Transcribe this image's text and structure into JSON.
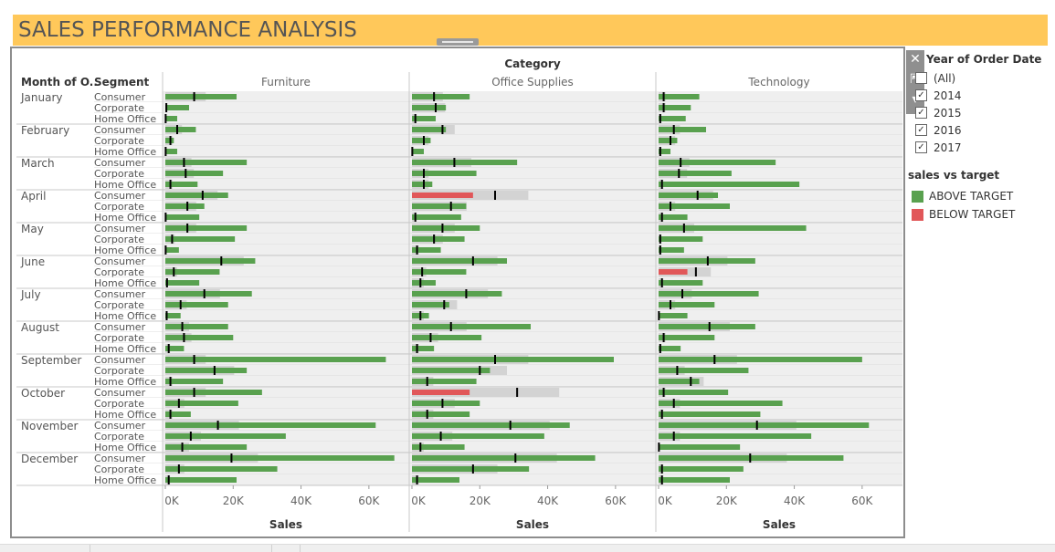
{
  "title": "SALES PERFORMANCE ANALYSIS",
  "filter": {
    "title": "Year of Order Date",
    "options": [
      {
        "label": "(All)",
        "checked": false
      },
      {
        "label": "2014",
        "checked": true
      },
      {
        "label": "2015",
        "checked": true
      },
      {
        "label": "2016",
        "checked": true
      },
      {
        "label": "2017",
        "checked": true
      }
    ]
  },
  "legend": {
    "title": "sales vs target",
    "items": [
      {
        "label": "ABOVE TARGET",
        "color": "#59a14f"
      },
      {
        "label": "BELOW TARGET",
        "color": "#e15759"
      }
    ]
  },
  "chart_data": {
    "type": "bar",
    "title": "",
    "column_header": "Category",
    "row_headers": [
      "Month of O..",
      "Segment"
    ],
    "categories": [
      "Furniture",
      "Office Supplies",
      "Technology"
    ],
    "months": [
      "January",
      "February",
      "March",
      "April",
      "May",
      "June",
      "July",
      "August",
      "September",
      "October",
      "November",
      "December"
    ],
    "segments": [
      "Consumer",
      "Corporate",
      "Home Office"
    ],
    "xlabel": "Sales",
    "xlim": [
      0,
      70000
    ],
    "xticks": [
      0,
      20000,
      40000,
      60000
    ],
    "xtick_labels": [
      "0K",
      "20K",
      "40K",
      "60K"
    ],
    "colors": {
      "above": "#59a14f",
      "below": "#e15759",
      "reference": "#d3d3d3"
    },
    "series": [
      {
        "name": "Furniture",
        "sales": [
          [
            21000,
            7000,
            3500
          ],
          [
            9000,
            2500,
            3500
          ],
          [
            24000,
            17000,
            9500
          ],
          [
            18500,
            11500,
            10000
          ],
          [
            24000,
            20500,
            4000
          ],
          [
            26500,
            16000,
            10000
          ],
          [
            25500,
            18500,
            4500
          ],
          [
            18500,
            20000,
            5500
          ],
          [
            65000,
            24000,
            17000
          ],
          [
            28500,
            21500,
            7500
          ],
          [
            62000,
            35500,
            24000
          ],
          [
            67500,
            33000,
            21000
          ]
        ],
        "target": [
          [
            8500,
            300,
            100
          ],
          [
            3500,
            1500,
            100
          ],
          [
            5500,
            6000,
            1500
          ],
          [
            11000,
            6500,
            100
          ],
          [
            6500,
            2000,
            100
          ],
          [
            16500,
            2500,
            500
          ],
          [
            11500,
            4500,
            400
          ],
          [
            5000,
            5500,
            1000
          ],
          [
            8500,
            14500,
            1500
          ],
          [
            8500,
            4000,
            1500
          ],
          [
            15500,
            7500,
            5000
          ],
          [
            19500,
            4000,
            1000
          ]
        ]
      },
      {
        "name": "Office Supplies",
        "sales": [
          [
            17000,
            10000,
            7000
          ],
          [
            10000,
            5500,
            3500
          ],
          [
            31000,
            19000,
            6000
          ],
          [
            18000,
            16000,
            14500
          ],
          [
            20000,
            15500,
            8500
          ],
          [
            28000,
            16000,
            7000
          ],
          [
            26500,
            11000,
            5000
          ],
          [
            35000,
            20500,
            6500
          ],
          [
            59500,
            23000,
            19000
          ],
          [
            17000,
            20000,
            17000
          ],
          [
            46500,
            39000,
            15500
          ],
          [
            54000,
            34500,
            14000
          ]
        ],
        "target": [
          [
            6500,
            7000,
            1000
          ],
          [
            9000,
            3500,
            100
          ],
          [
            12500,
            3500,
            3500
          ],
          [
            24500,
            11500,
            1000
          ],
          [
            9000,
            6500,
            1500
          ],
          [
            18000,
            3000,
            2500
          ],
          [
            16000,
            9500,
            2500
          ],
          [
            11500,
            5500,
            1500
          ],
          [
            24500,
            20000,
            4500
          ],
          [
            31000,
            9000,
            4500
          ],
          [
            29000,
            8500,
            2500
          ],
          [
            30500,
            18000,
            1500
          ]
        ]
      },
      {
        "name": "Technology",
        "sales": [
          [
            12000,
            9500,
            8000
          ],
          [
            14000,
            5500,
            3500
          ],
          [
            34500,
            21500,
            41500
          ],
          [
            17500,
            21000,
            8500
          ],
          [
            43500,
            13000,
            7500
          ],
          [
            28500,
            8500,
            13000
          ],
          [
            29500,
            16500,
            8500
          ],
          [
            28500,
            16500,
            6500
          ],
          [
            60000,
            26500,
            12000
          ],
          [
            20500,
            36500,
            30000
          ],
          [
            62000,
            45000,
            24000
          ],
          [
            54500,
            25000,
            21000
          ]
        ],
        "target": [
          [
            1500,
            1500,
            500
          ],
          [
            4500,
            3500,
            500
          ],
          [
            6500,
            6000,
            1000
          ],
          [
            11500,
            3500,
            1000
          ],
          [
            7500,
            500,
            500
          ],
          [
            14500,
            11000,
            1000
          ],
          [
            7000,
            3500,
            100
          ],
          [
            15000,
            1500,
            500
          ],
          [
            16500,
            5500,
            9500
          ],
          [
            1500,
            4500,
            1000
          ],
          [
            29000,
            4500,
            100
          ],
          [
            27000,
            1000,
            1000
          ]
        ]
      }
    ]
  }
}
